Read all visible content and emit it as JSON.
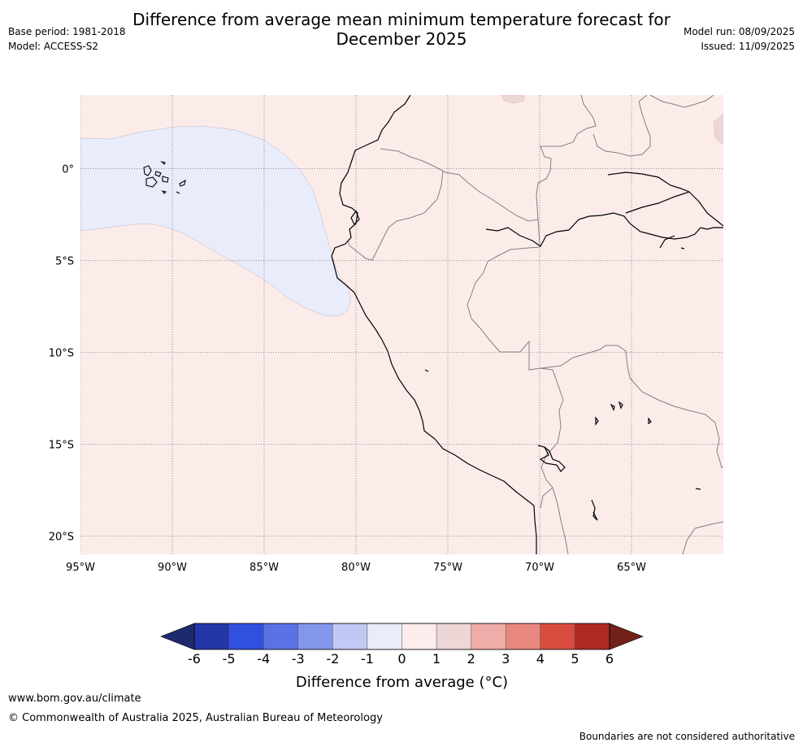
{
  "header": {
    "title_line1": "Difference from average mean minimum temperature forecast for",
    "title_line2": "December 2025",
    "base_period": "Base period: 1981-2018",
    "model": "Model: ACCESS-S2",
    "model_run": "Model run: 08/09/2025",
    "issued": "Issued: 11/09/2025"
  },
  "map": {
    "lon_ticks": [
      {
        "value": -95,
        "label": "95°W"
      },
      {
        "value": -90,
        "label": "90°W"
      },
      {
        "value": -85,
        "label": "85°W"
      },
      {
        "value": -80,
        "label": "80°W"
      },
      {
        "value": -75,
        "label": "75°W"
      },
      {
        "value": -70,
        "label": "70°W"
      },
      {
        "value": -65,
        "label": "65°W"
      }
    ],
    "lat_ticks": [
      {
        "value": 0,
        "label": "0°"
      },
      {
        "value": -5,
        "label": "5°S"
      },
      {
        "value": -10,
        "label": "10°S"
      },
      {
        "value": -15,
        "label": "15°S"
      },
      {
        "value": -20,
        "label": "20°S"
      }
    ],
    "extent": {
      "lon_min": -95,
      "lon_max": -60,
      "lat_min": -21,
      "lat_max": 4
    },
    "background_category": "0 to 1",
    "anomaly_region_category": "-1 to 0"
  },
  "colorbar": {
    "title": "Difference from average (°C)",
    "ticks": [
      "-6",
      "-5",
      "-4",
      "-3",
      "-2",
      "-1",
      "0",
      "1",
      "2",
      "3",
      "4",
      "5",
      "6"
    ],
    "colors": [
      "#2236a8",
      "#3050e0",
      "#5a72e4",
      "#8496ea",
      "#c2c8f4",
      "#e8ecfb",
      "#fcecec",
      "#edd6d6",
      "#efaca8",
      "#e8877e",
      "#da4b3f",
      "#ae2a23"
    ],
    "under_color": "#1f2a6e",
    "over_color": "#73211b"
  },
  "footer": {
    "url": "www.bom.gov.au/climate",
    "copyright": "© Commonwealth of Australia 2025, Australian Bureau of Meteorology",
    "disclaimer": "Boundaries are not considered authoritative"
  }
}
